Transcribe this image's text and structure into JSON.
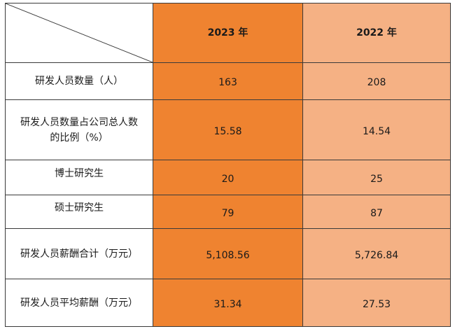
{
  "table": {
    "headers": [
      "2023 年",
      "2022 年"
    ],
    "rows": [
      {
        "label": "研发人员数量（人）",
        "v2023": "163",
        "v2022": "208"
      },
      {
        "label_line1": "研发人员数量占公司总人数",
        "label_line2": "的比例（%）",
        "v2023": "15.58",
        "v2022": "14.54"
      },
      {
        "label": "博士研究生",
        "v2023": "20",
        "v2022": "25"
      },
      {
        "label": "硕士研究生",
        "v2023": "79",
        "v2022": "87"
      },
      {
        "label": "研发人员薪酬合计（万元）",
        "v2023": "5,108.56",
        "v2022": "5,726.84"
      },
      {
        "label": "研发人员平均薪酬（万元）",
        "v2023": "31.34",
        "v2022": "27.53"
      }
    ]
  },
  "colors": {
    "col_2023": "#ef8330",
    "col_2022": "#f5b184",
    "border": "#3a3a3a"
  }
}
